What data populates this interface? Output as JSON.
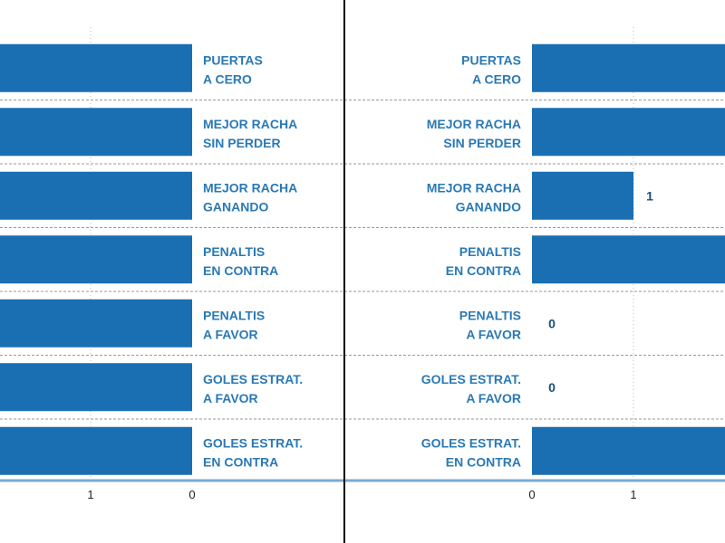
{
  "chart_data": [
    {
      "type": "bar",
      "orientation": "horizontal",
      "direction": "right-to-left",
      "categories": [
        [
          "PUERTAS",
          "A CERO"
        ],
        [
          "MEJOR RACHA",
          "SIN PERDER"
        ],
        [
          "MEJOR RACHA",
          "GANANDO"
        ],
        [
          "PENALTIS",
          "EN CONTRA"
        ],
        [
          "PENALTIS",
          "A FAVOR"
        ],
        [
          "GOLES ESTRAT.",
          "A FAVOR"
        ],
        [
          "GOLES ESTRAT.",
          "EN CONTRA"
        ]
      ],
      "values": [
        2,
        2,
        2,
        2,
        2,
        2,
        2
      ],
      "value_labels": [
        null,
        null,
        null,
        null,
        null,
        null,
        null
      ],
      "x_ticks": [
        "1",
        "0"
      ],
      "xlim": [
        0,
        2
      ],
      "grid": true
    },
    {
      "type": "bar",
      "orientation": "horizontal",
      "direction": "left-to-right",
      "categories": [
        [
          "PUERTAS",
          "A CERO"
        ],
        [
          "MEJOR RACHA",
          "SIN PERDER"
        ],
        [
          "MEJOR RACHA",
          "GANANDO"
        ],
        [
          "PENALTIS",
          "EN CONTRA"
        ],
        [
          "PENALTIS",
          "A FAVOR"
        ],
        [
          "GOLES ESTRAT.",
          "A FAVOR"
        ],
        [
          "GOLES ESTRAT.",
          "EN CONTRA"
        ]
      ],
      "values": [
        2,
        2,
        1,
        2,
        0,
        0,
        2
      ],
      "value_labels": [
        null,
        null,
        "1",
        null,
        "0",
        "0",
        null
      ],
      "x_ticks": [
        "0",
        "1"
      ],
      "xlim": [
        0,
        2
      ],
      "grid": true
    }
  ],
  "colors": {
    "bar": "#1a6fb2",
    "label": "#2a79b5",
    "value_label": "#1a4d7a",
    "grid": "#999999",
    "axis": "#7aaad0",
    "divider": "#000000"
  }
}
